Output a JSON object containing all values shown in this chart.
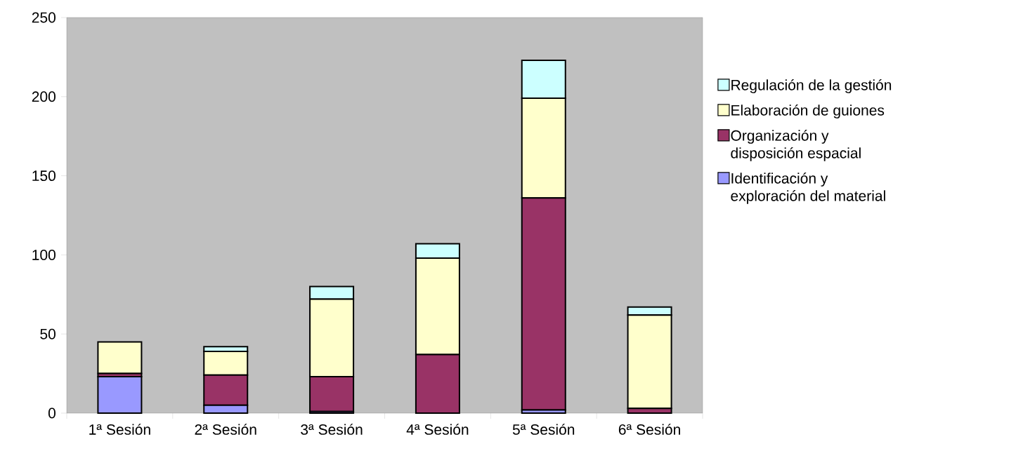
{
  "chart_data": {
    "type": "bar",
    "stacked": true,
    "legend": "right",
    "categories": [
      "1ª Sesión",
      "2ª Sesión",
      "3ª Sesión",
      "4ª Sesión",
      "5ª Sesión",
      "6ª Sesión"
    ],
    "ylim": [
      0,
      250
    ],
    "yticks": [
      0,
      50,
      100,
      150,
      200,
      250
    ],
    "series": [
      {
        "name": "Identificación y exploración del material",
        "color": "#9999ff",
        "values": [
          23,
          5,
          1,
          0,
          2,
          0
        ]
      },
      {
        "name": "Organización y disposición espacial",
        "color": "#993366",
        "values": [
          2,
          19,
          22,
          37,
          134,
          3
        ]
      },
      {
        "name": "Elaboración de guiones",
        "color": "#ffffcc",
        "values": [
          20,
          15,
          49,
          61,
          63,
          59
        ]
      },
      {
        "name": "Regulación de la gestión",
        "color": "#ccffff",
        "values": [
          null,
          3,
          8,
          9,
          24,
          5
        ]
      }
    ]
  }
}
